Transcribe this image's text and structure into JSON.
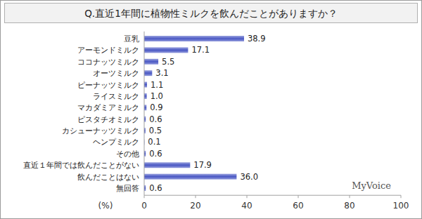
{
  "chart_data": {
    "type": "bar",
    "orientation": "horizontal",
    "title": "Q.直近1年間に植物性ミルクを飲んだことがありますか？",
    "categories": [
      "豆乳",
      "アーモンドミルク",
      "ココナッツミルク",
      "オーツミルク",
      "ピーナッツミルク",
      "ライスミルク",
      "マカダミアミルク",
      "ピスタチオミルク",
      "カシューナッツミルク",
      "ヘンプミルク",
      "その他",
      "直近１年間では飲んだことがない",
      "飲んだことはない",
      "無回答"
    ],
    "values": [
      38.9,
      17.1,
      5.5,
      3.1,
      1.1,
      1.0,
      0.9,
      0.6,
      0.5,
      0.1,
      0.6,
      17.9,
      36.0,
      0.6
    ],
    "value_labels": [
      "38.9",
      "17.1",
      "5.5",
      "3.1",
      "1.1",
      "1.0",
      "0.9",
      "0.6",
      "0.5",
      "0.1",
      "0.6",
      "17.9",
      "36.0",
      "0.6"
    ],
    "data_labels": true,
    "color": "#4a58c4",
    "x_label": "(%)",
    "xlim": [
      0,
      100
    ],
    "xticks": [
      0,
      20,
      40,
      60,
      80,
      100
    ],
    "grid": false,
    "source": "MyVoice"
  }
}
